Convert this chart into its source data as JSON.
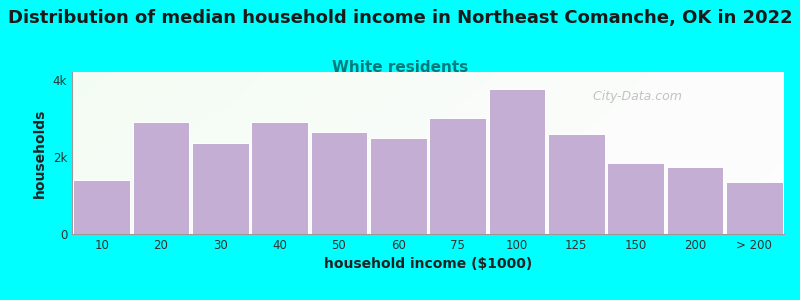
{
  "title": "Distribution of median household income in Northeast Comanche, OK in 2022",
  "subtitle": "White residents",
  "xlabel": "household income ($1000)",
  "ylabel": "households",
  "background_color": "#00FFFF",
  "bar_color": "#c4aed4",
  "bar_edge_color": "#ffffff",
  "categories": [
    "10",
    "20",
    "30",
    "40",
    "50",
    "60",
    "75",
    "100",
    "125",
    "150",
    "200",
    "> 200"
  ],
  "values": [
    1400,
    2900,
    2350,
    2900,
    2650,
    2500,
    3000,
    3750,
    2600,
    1850,
    1750,
    1350
  ],
  "ylim": [
    0,
    4200
  ],
  "yticks": [
    0,
    2000,
    4000
  ],
  "ytick_labels": [
    "0",
    "2k",
    "4k"
  ],
  "title_fontsize": 13,
  "subtitle_fontsize": 11,
  "subtitle_color": "#007b7b",
  "watermark": "  City-Data.com"
}
